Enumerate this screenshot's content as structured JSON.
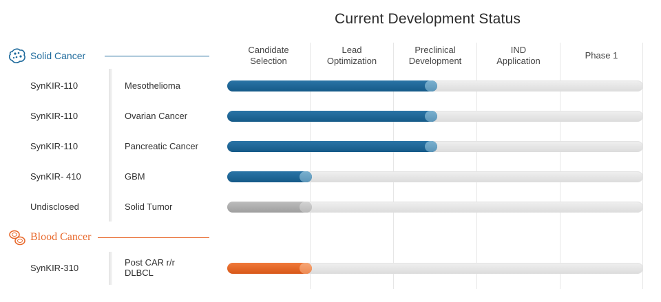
{
  "title": "Current Development Status",
  "sections": [
    {
      "label": "Solid Cancer",
      "icon": "cell-cluster-icon",
      "color": "#1e6a9c"
    },
    {
      "label": "Blood Cancer",
      "icon": "blood-cells-icon",
      "color": "#e8692c"
    }
  ],
  "colors": {
    "blue": "#1d6796",
    "gray": "#a8a8a8",
    "orange": "#e8692c",
    "track": "#e6e6e6"
  },
  "chart_data": {
    "type": "bar",
    "title": "Current Development Status",
    "stages": [
      "Candidate\nSelection",
      "Lead\nOptimization",
      "Preclinical\nDevelopment",
      "IND\nApplication",
      "Phase 1"
    ],
    "max_stage": 5,
    "rows": [
      {
        "candidate": "SynKIR-110",
        "indication": "Mesothelioma",
        "section": "Solid Cancer",
        "progress": 2.5,
        "color": "blue"
      },
      {
        "candidate": "SynKIR-110",
        "indication": "Ovarian Cancer",
        "section": "Solid Cancer",
        "progress": 2.5,
        "color": "blue"
      },
      {
        "candidate": "SynKIR-110",
        "indication": "Pancreatic Cancer",
        "section": "Solid Cancer",
        "progress": 2.5,
        "color": "blue"
      },
      {
        "candidate": "SynKIR- 410",
        "indication": "GBM",
        "section": "Solid Cancer",
        "progress": 1.0,
        "color": "blue"
      },
      {
        "candidate": "Undisclosed",
        "indication": "Solid Tumor",
        "section": "Solid Cancer",
        "progress": 1.0,
        "color": "gray"
      },
      {
        "candidate": "SynKIR-310",
        "indication": "Post CAR r/r\nDLBCL",
        "section": "Blood Cancer",
        "progress": 1.0,
        "color": "orange"
      }
    ]
  }
}
